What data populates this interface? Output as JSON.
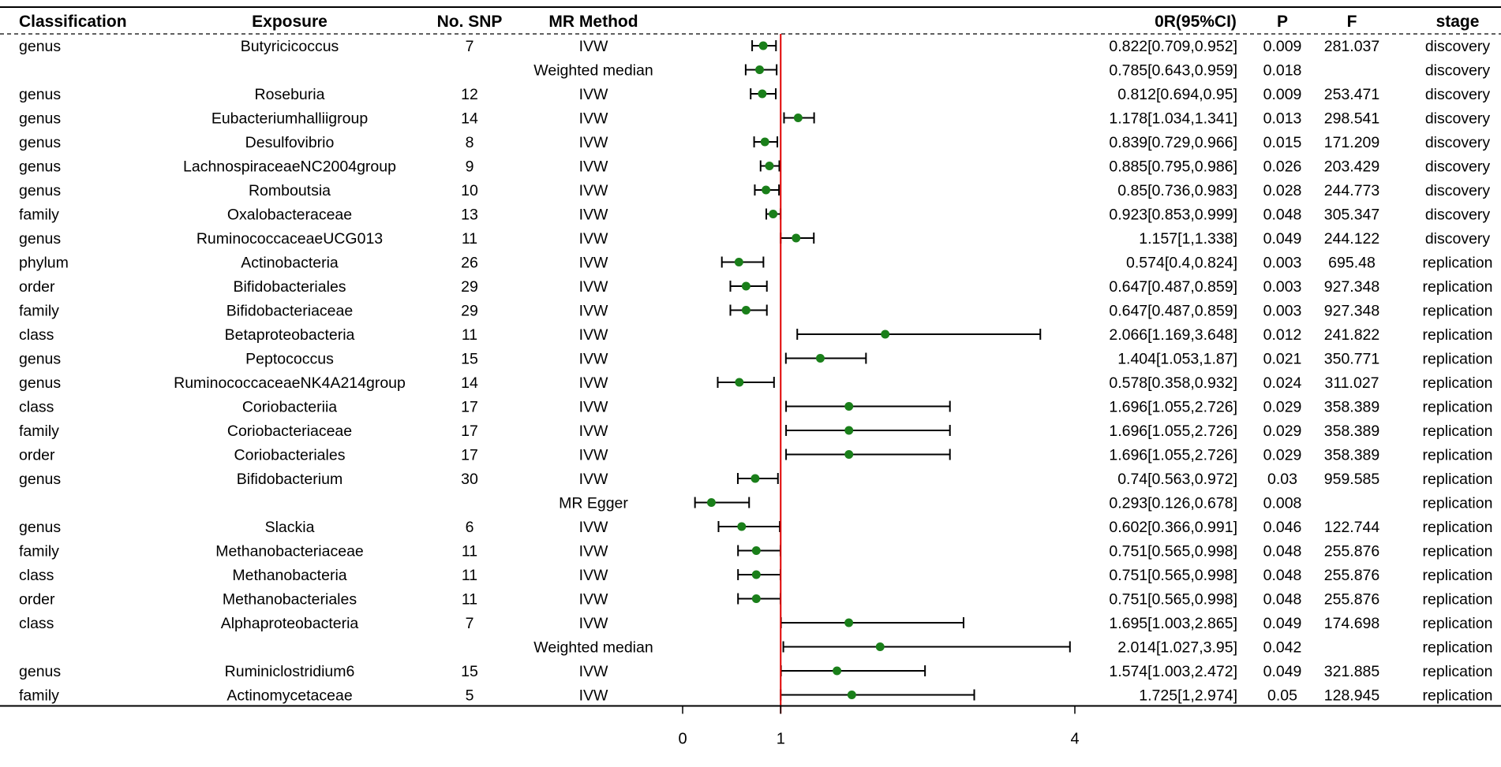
{
  "chart_data": {
    "type": "forest",
    "columns": {
      "classification": "Classification",
      "exposure": "Exposure",
      "nsnp": "No. SNP",
      "method": "MR Method",
      "or": "0R(95%CI)",
      "p": "P",
      "f": "F",
      "stage": "stage"
    },
    "axis": {
      "ticks": [
        0,
        1,
        4
      ],
      "tick_labels": [
        "0",
        "1",
        "4"
      ],
      "reference": 1,
      "range": [
        0,
        4
      ]
    },
    "colors": {
      "point": "#1a7f1a",
      "reference_line": "#e00000",
      "line": "#000000"
    },
    "rows": [
      {
        "classification": "genus",
        "exposure": "Butyricicoccus",
        "nsnp": "7",
        "method": "IVW",
        "or": 0.822,
        "lo": 0.709,
        "hi": 0.952,
        "or_text": "0.822[0.709,0.952]",
        "p": "0.009",
        "f": "281.037",
        "stage": "discovery"
      },
      {
        "classification": "",
        "exposure": "",
        "nsnp": "",
        "method": "Weighted median",
        "or": 0.785,
        "lo": 0.643,
        "hi": 0.959,
        "or_text": "0.785[0.643,0.959]",
        "p": "0.018",
        "f": "",
        "stage": "discovery"
      },
      {
        "classification": "genus",
        "exposure": "Roseburia",
        "nsnp": "12",
        "method": "IVW",
        "or": 0.812,
        "lo": 0.694,
        "hi": 0.95,
        "or_text": "0.812[0.694,0.95]",
        "p": "0.009",
        "f": "253.471",
        "stage": "discovery"
      },
      {
        "classification": "genus",
        "exposure": "Eubacteriumhalliigroup",
        "nsnp": "14",
        "method": "IVW",
        "or": 1.178,
        "lo": 1.034,
        "hi": 1.341,
        "or_text": "1.178[1.034,1.341]",
        "p": "0.013",
        "f": "298.541",
        "stage": "discovery"
      },
      {
        "classification": "genus",
        "exposure": "Desulfovibrio",
        "nsnp": "8",
        "method": "IVW",
        "or": 0.839,
        "lo": 0.729,
        "hi": 0.966,
        "or_text": "0.839[0.729,0.966]",
        "p": "0.015",
        "f": "171.209",
        "stage": "discovery"
      },
      {
        "classification": "genus",
        "exposure": "LachnospiraceaeNC2004group",
        "nsnp": "9",
        "method": "IVW",
        "or": 0.885,
        "lo": 0.795,
        "hi": 0.986,
        "or_text": "0.885[0.795,0.986]",
        "p": "0.026",
        "f": "203.429",
        "stage": "discovery"
      },
      {
        "classification": "genus",
        "exposure": "Romboutsia",
        "nsnp": "10",
        "method": "IVW",
        "or": 0.85,
        "lo": 0.736,
        "hi": 0.983,
        "or_text": "0.85[0.736,0.983]",
        "p": "0.028",
        "f": "244.773",
        "stage": "discovery"
      },
      {
        "classification": "family",
        "exposure": "Oxalobacteraceae",
        "nsnp": "13",
        "method": "IVW",
        "or": 0.923,
        "lo": 0.853,
        "hi": 0.999,
        "or_text": "0.923[0.853,0.999]",
        "p": "0.048",
        "f": "305.347",
        "stage": "discovery"
      },
      {
        "classification": "genus",
        "exposure": "RuminococcaceaeUCG013",
        "nsnp": "11",
        "method": "IVW",
        "or": 1.157,
        "lo": 1,
        "hi": 1.338,
        "or_text": "1.157[1,1.338]",
        "p": "0.049",
        "f": "244.122",
        "stage": "discovery"
      },
      {
        "classification": "phylum",
        "exposure": "Actinobacteria",
        "nsnp": "26",
        "method": "IVW",
        "or": 0.574,
        "lo": 0.4,
        "hi": 0.824,
        "or_text": "0.574[0.4,0.824]",
        "p": "0.003",
        "f": "695.48",
        "stage": "replication"
      },
      {
        "classification": "order",
        "exposure": "Bifidobacteriales",
        "nsnp": "29",
        "method": "IVW",
        "or": 0.647,
        "lo": 0.487,
        "hi": 0.859,
        "or_text": "0.647[0.487,0.859]",
        "p": "0.003",
        "f": "927.348",
        "stage": "replication"
      },
      {
        "classification": "family",
        "exposure": "Bifidobacteriaceae",
        "nsnp": "29",
        "method": "IVW",
        "or": 0.647,
        "lo": 0.487,
        "hi": 0.859,
        "or_text": "0.647[0.487,0.859]",
        "p": "0.003",
        "f": "927.348",
        "stage": "replication"
      },
      {
        "classification": "class",
        "exposure": "Betaproteobacteria",
        "nsnp": "11",
        "method": "IVW",
        "or": 2.066,
        "lo": 1.169,
        "hi": 3.648,
        "or_text": "2.066[1.169,3.648]",
        "p": "0.012",
        "f": "241.822",
        "stage": "replication"
      },
      {
        "classification": "genus",
        "exposure": "Peptococcus",
        "nsnp": "15",
        "method": "IVW",
        "or": 1.404,
        "lo": 1.053,
        "hi": 1.87,
        "or_text": "1.404[1.053,1.87]",
        "p": "0.021",
        "f": "350.771",
        "stage": "replication"
      },
      {
        "classification": "genus",
        "exposure": "RuminococcaceaeNK4A214group",
        "nsnp": "14",
        "method": "IVW",
        "or": 0.578,
        "lo": 0.358,
        "hi": 0.932,
        "or_text": "0.578[0.358,0.932]",
        "p": "0.024",
        "f": "311.027",
        "stage": "replication"
      },
      {
        "classification": "class",
        "exposure": "Coriobacteriia",
        "nsnp": "17",
        "method": "IVW",
        "or": 1.696,
        "lo": 1.055,
        "hi": 2.726,
        "or_text": "1.696[1.055,2.726]",
        "p": "0.029",
        "f": "358.389",
        "stage": "replication"
      },
      {
        "classification": "family",
        "exposure": "Coriobacteriaceae",
        "nsnp": "17",
        "method": "IVW",
        "or": 1.696,
        "lo": 1.055,
        "hi": 2.726,
        "or_text": "1.696[1.055,2.726]",
        "p": "0.029",
        "f": "358.389",
        "stage": "replication"
      },
      {
        "classification": "order",
        "exposure": "Coriobacteriales",
        "nsnp": "17",
        "method": "IVW",
        "or": 1.696,
        "lo": 1.055,
        "hi": 2.726,
        "or_text": "1.696[1.055,2.726]",
        "p": "0.029",
        "f": "358.389",
        "stage": "replication"
      },
      {
        "classification": "genus",
        "exposure": "Bifidobacterium",
        "nsnp": "30",
        "method": "IVW",
        "or": 0.74,
        "lo": 0.563,
        "hi": 0.972,
        "or_text": "0.74[0.563,0.972]",
        "p": "0.03",
        "f": "959.585",
        "stage": "replication"
      },
      {
        "classification": "",
        "exposure": "",
        "nsnp": "",
        "method": "MR Egger",
        "or": 0.293,
        "lo": 0.126,
        "hi": 0.678,
        "or_text": "0.293[0.126,0.678]",
        "p": "0.008",
        "f": "",
        "stage": "replication"
      },
      {
        "classification": "genus",
        "exposure": "Slackia",
        "nsnp": "6",
        "method": "IVW",
        "or": 0.602,
        "lo": 0.366,
        "hi": 0.991,
        "or_text": "0.602[0.366,0.991]",
        "p": "0.046",
        "f": "122.744",
        "stage": "replication"
      },
      {
        "classification": "family",
        "exposure": "Methanobacteriaceae",
        "nsnp": "11",
        "method": "IVW",
        "or": 0.751,
        "lo": 0.565,
        "hi": 0.998,
        "or_text": "0.751[0.565,0.998]",
        "p": "0.048",
        "f": "255.876",
        "stage": "replication"
      },
      {
        "classification": "class",
        "exposure": "Methanobacteria",
        "nsnp": "11",
        "method": "IVW",
        "or": 0.751,
        "lo": 0.565,
        "hi": 0.998,
        "or_text": "0.751[0.565,0.998]",
        "p": "0.048",
        "f": "255.876",
        "stage": "replication"
      },
      {
        "classification": "order",
        "exposure": "Methanobacteriales",
        "nsnp": "11",
        "method": "IVW",
        "or": 0.751,
        "lo": 0.565,
        "hi": 0.998,
        "or_text": "0.751[0.565,0.998]",
        "p": "0.048",
        "f": "255.876",
        "stage": "replication"
      },
      {
        "classification": "class",
        "exposure": "Alphaproteobacteria",
        "nsnp": "7",
        "method": "IVW",
        "or": 1.695,
        "lo": 1.003,
        "hi": 2.865,
        "or_text": "1.695[1.003,2.865]",
        "p": "0.049",
        "f": "174.698",
        "stage": "replication"
      },
      {
        "classification": "",
        "exposure": "",
        "nsnp": "",
        "method": "Weighted median",
        "or": 2.014,
        "lo": 1.027,
        "hi": 3.95,
        "or_text": "2.014[1.027,3.95]",
        "p": "0.042",
        "f": "",
        "stage": "replication"
      },
      {
        "classification": "genus",
        "exposure": "Ruminiclostridium6",
        "nsnp": "15",
        "method": "IVW",
        "or": 1.574,
        "lo": 1.003,
        "hi": 2.472,
        "or_text": "1.574[1.003,2.472]",
        "p": "0.049",
        "f": "321.885",
        "stage": "replication"
      },
      {
        "classification": "family",
        "exposure": "Actinomycetaceae",
        "nsnp": "5",
        "method": "IVW",
        "or": 1.725,
        "lo": 1,
        "hi": 2.974,
        "or_text": "1.725[1,2.974]",
        "p": "0.05",
        "f": "128.945",
        "stage": "replication"
      }
    ]
  }
}
